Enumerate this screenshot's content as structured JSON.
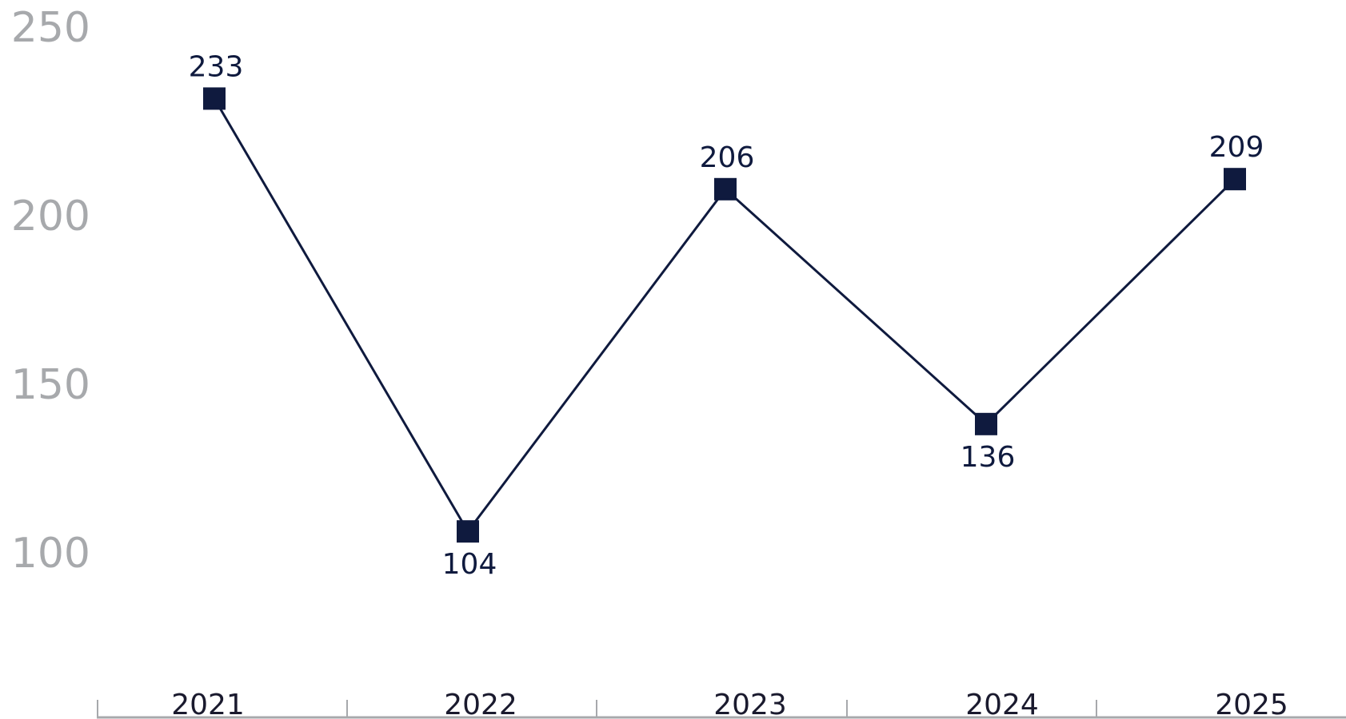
{
  "chart_data": {
    "type": "line",
    "categories": [
      "2021",
      "2022",
      "2023",
      "2024",
      "2025"
    ],
    "series": [
      {
        "values": [
          233,
          104,
          206,
          136,
          209
        ]
      }
    ],
    "data_labels": [
      "233",
      "104",
      "206",
      "136",
      "209"
    ],
    "y_ticks": [
      100,
      150,
      200,
      250
    ],
    "y_tick_labels": [
      "100",
      "150",
      "200",
      "250"
    ],
    "ylim": [
      100,
      250
    ],
    "grid": false,
    "marker": "square",
    "colors": {
      "line": "#0f1a3e",
      "marker": "#0f1a3e",
      "data_label": "#0f1a3e",
      "y_tick_label": "#a7a9ac",
      "x_axis": "#a7a9ac",
      "x_tick_label": "#1a1a2e"
    }
  }
}
